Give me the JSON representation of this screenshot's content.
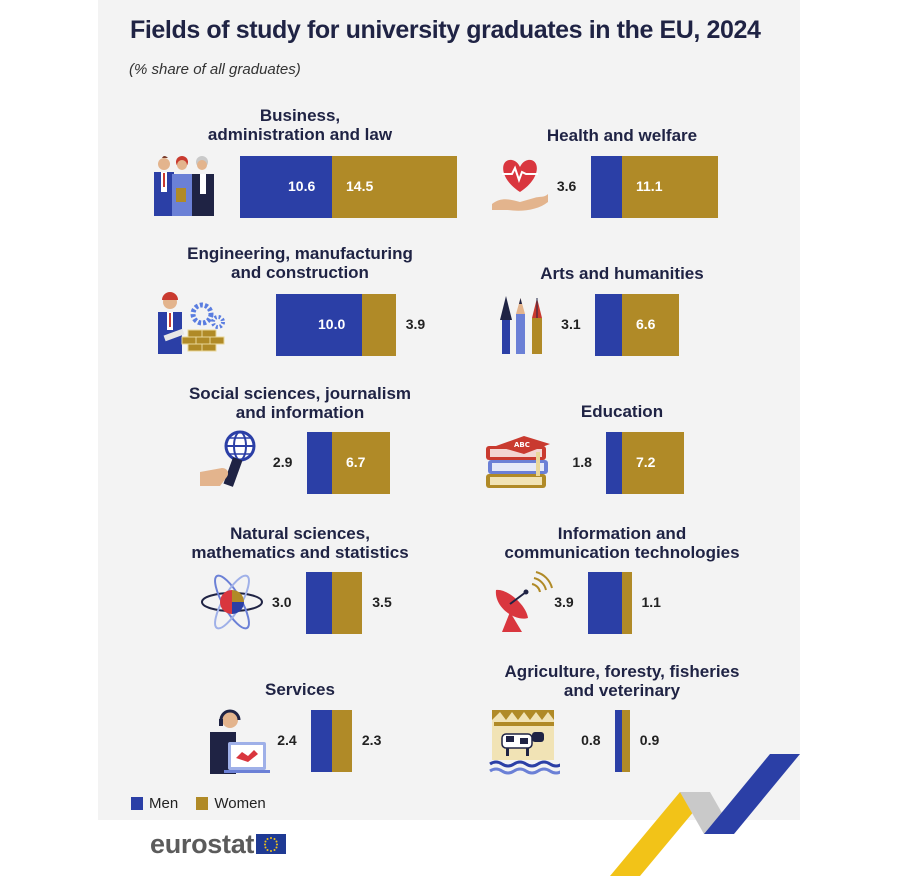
{
  "title": "Fields of study for university graduates in the EU, 2024",
  "subtitle": "(% share of all graduates)",
  "legend": [
    {
      "label": "Men",
      "color": "#2b3fa6"
    },
    {
      "label": "Women",
      "color": "#b08a27"
    }
  ],
  "logo": "eurostat",
  "chart_data": {
    "type": "bar",
    "orientation": "horizontal-stacked",
    "title": "Fields of study for university graduates in the EU, 2024",
    "subtitle": "(% share of all graduates)",
    "series": [
      {
        "name": "Men",
        "color": "#2b3fa6"
      },
      {
        "name": "Women",
        "color": "#b08a27"
      }
    ],
    "categories": [
      {
        "id": "business",
        "label_lines": [
          "Business,",
          "administration and law"
        ],
        "men": 10.6,
        "women": 14.5,
        "icon": "lawyers-icon"
      },
      {
        "id": "health",
        "label_lines": [
          "Health and welfare"
        ],
        "men": 3.6,
        "women": 11.1,
        "icon": "heart-hand-icon"
      },
      {
        "id": "engineering",
        "label_lines": [
          "Engineering, manufacturing",
          "and construction"
        ],
        "men": 10.0,
        "women": 3.9,
        "icon": "engineer-icon"
      },
      {
        "id": "arts",
        "label_lines": [
          "Arts and humanities"
        ],
        "men": 3.1,
        "women": 6.6,
        "icon": "brushes-icon"
      },
      {
        "id": "social",
        "label_lines": [
          "Social sciences, journalism",
          "and information"
        ],
        "men": 2.9,
        "women": 6.7,
        "icon": "microphone-icon"
      },
      {
        "id": "education",
        "label_lines": [
          "Education"
        ],
        "men": 1.8,
        "women": 7.2,
        "icon": "books-icon"
      },
      {
        "id": "natural",
        "label_lines": [
          "Natural sciences,",
          "mathematics and statistics"
        ],
        "men": 3.0,
        "women": 3.5,
        "icon": "atom-icon"
      },
      {
        "id": "ict",
        "label_lines": [
          "Information and",
          "communication technologies"
        ],
        "men": 3.9,
        "women": 1.1,
        "icon": "satellite-dish-icon"
      },
      {
        "id": "services",
        "label_lines": [
          "Services"
        ],
        "men": 2.4,
        "women": 2.3,
        "icon": "support-agent-icon"
      },
      {
        "id": "agriculture",
        "label_lines": [
          "Agriculture, foresty, fisheries",
          "and veterinary"
        ],
        "men": 0.8,
        "women": 0.9,
        "icon": "farm-icon"
      }
    ]
  }
}
